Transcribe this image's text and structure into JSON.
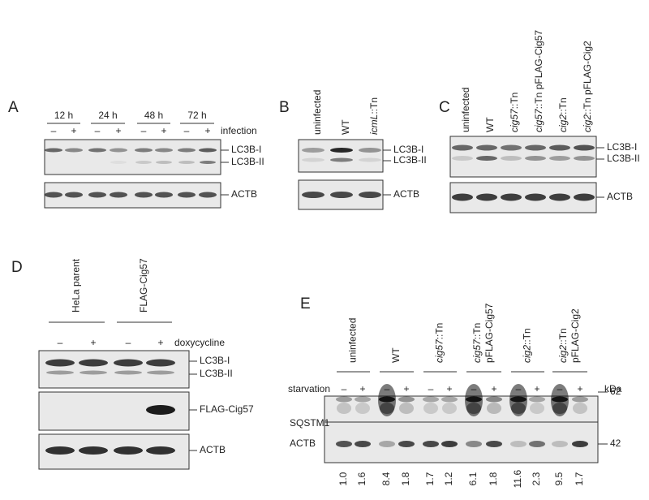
{
  "panel_A": {
    "label": "A",
    "times": [
      "12 h",
      "24 h",
      "48 h",
      "72 h"
    ],
    "condition": "infection",
    "signs": [
      "–",
      "+",
      "–",
      "+",
      "–",
      "+",
      "–",
      "+"
    ],
    "bands": [
      "LC3B-I",
      "LC3B-II",
      "ACTB"
    ]
  },
  "panel_B": {
    "label": "B",
    "lanes": [
      "uninfected",
      "WT",
      "icmL::Tn"
    ],
    "bands": [
      "LC3B-I",
      "LC3B-II",
      "ACTB"
    ]
  },
  "panel_C": {
    "label": "C",
    "lanes": [
      "uninfected",
      "WT",
      "cig57::Tn",
      "cig57::Tn pFLAG-Cig57",
      "cig2::Tn",
      "cig2::Tn pFLAG-Cig2"
    ],
    "bands": [
      "LC3B-I",
      "LC3B-II",
      "ACTB"
    ]
  },
  "panel_D": {
    "label": "D",
    "groups": [
      "HeLa parent",
      "FLAG-Cig57"
    ],
    "condition": "doxycycline",
    "signs": [
      "–",
      "+",
      "–",
      "+"
    ],
    "bands": [
      "LC3B-I",
      "LC3B-II",
      "FLAG-Cig57",
      "ACTB"
    ]
  },
  "panel_E": {
    "label": "E",
    "groups": [
      [
        "uninfected"
      ],
      [
        "WT"
      ],
      [
        "cig57::Tn"
      ],
      [
        "cig57::Tn",
        "pFLAG-Cig57"
      ],
      [
        "cig2::Tn"
      ],
      [
        "cig2::Tn",
        "pFLAG-Cig2"
      ]
    ],
    "condition": "starvation",
    "signs": [
      "–",
      "+",
      "–",
      "+",
      "–",
      "+",
      "–",
      "+",
      "–",
      "+",
      "–",
      "+"
    ],
    "unit": "kDa",
    "bands": [
      "SQSTM1",
      "ACTB"
    ],
    "markers": [
      62,
      42
    ],
    "ratios": [
      "1.0",
      "1.6",
      "8.4",
      "1.8",
      "1.7",
      "1.2",
      "6.1",
      "1.8",
      "11.6",
      "2.3",
      "9.5",
      "1.7"
    ]
  }
}
